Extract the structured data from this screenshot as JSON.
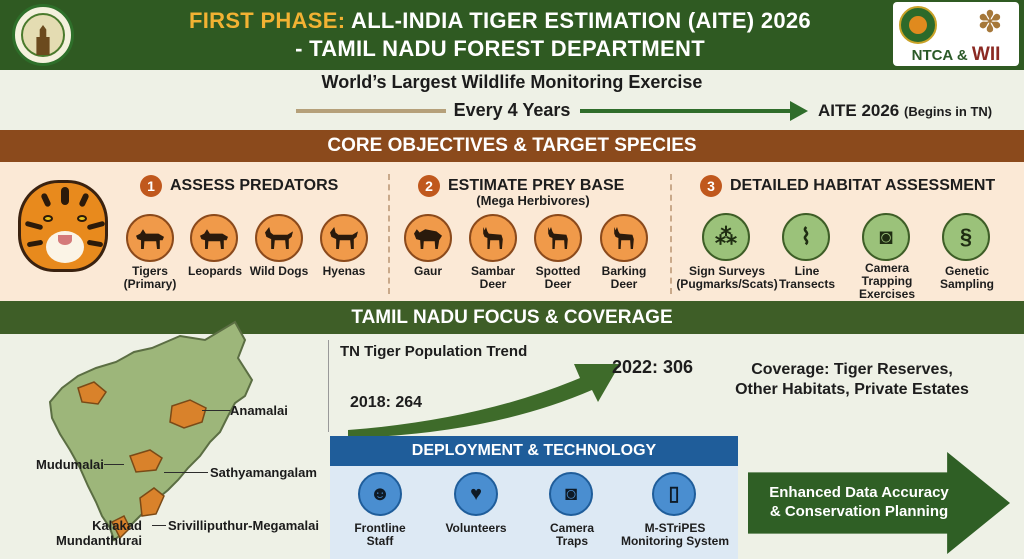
{
  "header": {
    "title_highlight": "FIRST PHASE:",
    "title_rest": "ALL-INDIA TIGER ESTIMATION (AITE) 2026",
    "title_line2": "- TAMIL NADU FOREST DEPARTMENT",
    "partners_ntca": "NTCA",
    "partners_and": " & ",
    "partners_wii": "WII"
  },
  "banner": {
    "headline": "World’s Largest Wildlife Monitoring Exercise",
    "frequency": "Every 4 Years",
    "aite_label": "AITE 2026",
    "aite_note": "(Begins in TN)"
  },
  "objectives": {
    "section_title": "CORE OBJECTIVES & TARGET SPECIES",
    "groups": [
      {
        "number": "1",
        "title": "ASSESS PREDATORS",
        "subtitle": "",
        "items": [
          {
            "label_1": "Tigers",
            "label_2": "(Primary)",
            "icon": "tiger-icon"
          },
          {
            "label_1": "Leopards",
            "label_2": "",
            "icon": "leopard-icon"
          },
          {
            "label_1": "Wild Dogs",
            "label_2": "",
            "icon": "wild-dog-icon"
          },
          {
            "label_1": "Hyenas",
            "label_2": "",
            "icon": "hyena-icon"
          }
        ]
      },
      {
        "number": "2",
        "title": "ESTIMATE PREY BASE",
        "subtitle": "(Mega Herbivores)",
        "items": [
          {
            "label_1": "Gaur",
            "label_2": "",
            "icon": "gaur-icon"
          },
          {
            "label_1": "Sambar",
            "label_2": "Deer",
            "icon": "sambar-deer-icon"
          },
          {
            "label_1": "Spotted",
            "label_2": "Deer",
            "icon": "spotted-deer-icon"
          },
          {
            "label_1": "Barking",
            "label_2": "Deer",
            "icon": "barking-deer-icon"
          }
        ]
      },
      {
        "number": "3",
        "title": "DETAILED HABITAT ASSESSMENT",
        "subtitle": "",
        "items": [
          {
            "label_1": "Sign Surveys",
            "label_2": "(Pugmarks/Scats)",
            "label_3": "",
            "icon": "footprints-icon"
          },
          {
            "label_1": "Line",
            "label_2": "Transects",
            "label_3": "",
            "icon": "route-icon"
          },
          {
            "label_1": "Camera",
            "label_2": "Trapping",
            "label_3": "Exercises",
            "icon": "camera-trap-icon"
          },
          {
            "label_1": "Genetic",
            "label_2": "Sampling",
            "label_3": "",
            "icon": "dna-icon"
          }
        ]
      }
    ]
  },
  "focus": {
    "section_title": "TAMIL NADU FOCUS & COVERAGE",
    "map_labels": {
      "anamalai": "Anamalai",
      "mudumalai": "Mudumalai",
      "sathyamangalam": "Sathyamangalam",
      "kalakad_1": "Kalakad",
      "kalakad_2": "Mundanthurai",
      "srivilliputhur": "Srivilliputhur-Megamalai"
    },
    "trend": {
      "title": "TN Tiger Population Trend",
      "start_label": "2018: 264",
      "end_label": "2022: 306",
      "start_year": 2018,
      "start_value": 264,
      "end_year": 2022,
      "end_value": 306
    },
    "coverage_line1": "Coverage: Tiger Reserves,",
    "coverage_line2": "Other Habitats, Private Estates"
  },
  "deployment": {
    "title": "DEPLOYMENT & TECHNOLOGY",
    "items": [
      {
        "label_1": "Frontline",
        "label_2": "Staff",
        "icon": "ranger-icon"
      },
      {
        "label_1": "Volunteers",
        "label_2": "",
        "icon": "volunteers-icon"
      },
      {
        "label_1": "Camera",
        "label_2": "Traps",
        "icon": "camera-icon"
      },
      {
        "label_1": "M-STriPES",
        "label_2": "Monitoring System",
        "icon": "mobile-app-icon"
      }
    ]
  },
  "outcome": {
    "line1": "Enhanced Data Accuracy",
    "line2": "& Conservation Planning"
  },
  "colors": {
    "header_green": "#2f5a22",
    "accent_orange": "#f2b233",
    "section_brown": "#8b4a1c",
    "section_green": "#3e5e27",
    "deploy_blue": "#1f5d9a",
    "map_green": "#9db67a",
    "reserve_orange": "#d9822b"
  }
}
